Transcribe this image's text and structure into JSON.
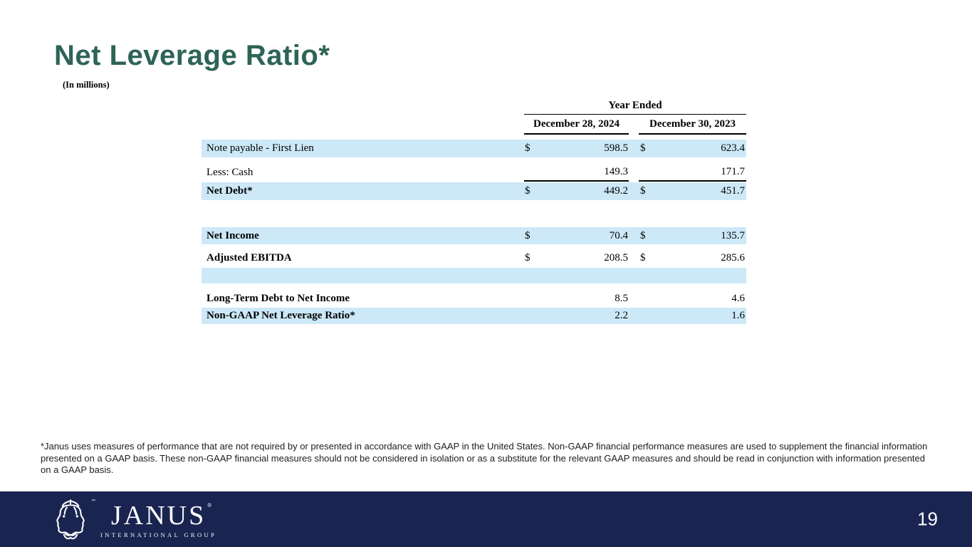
{
  "slide": {
    "title": "Net Leverage Ratio*",
    "subtitle": "(In millions)",
    "footnote": "*Janus uses measures of performance that are not required by or presented in accordance with GAAP in the United States. Non-GAAP financial performance measures are used to supplement the financial information presented on a GAAP basis. These non-GAAP financial measures should not be considered in isolation or as a substitute for the relevant GAAP measures and should be read in conjunction with information presented on a GAAP basis."
  },
  "table": {
    "group_header": "Year Ended",
    "columns": [
      "December 28, 2024",
      "December 30, 2023"
    ],
    "rows": [
      {
        "label": "Note payable - First Lien",
        "bold": false,
        "bg": "blue",
        "dollar1": "$",
        "val1": "598.5",
        "dollar2": "$",
        "val2": "623.4",
        "underline": false
      },
      {
        "label": "Less: Cash",
        "bold": false,
        "bg": "white",
        "dollar1": "",
        "val1": "149.3",
        "dollar2": "",
        "val2": "171.7",
        "underline": true
      },
      {
        "label": "Net Debt*",
        "bold": true,
        "bg": "blue",
        "dollar1": "$",
        "val1": "449.2",
        "dollar2": "$",
        "val2": "451.7",
        "underline": false
      },
      {
        "label": "Net Income",
        "bold": true,
        "bg": "blue",
        "dollar1": "$",
        "val1": "70.4",
        "dollar2": "$",
        "val2": "135.7",
        "underline": false
      },
      {
        "label": "Adjusted EBITDA",
        "bold": true,
        "bg": "white",
        "dollar1": "$",
        "val1": "208.5",
        "dollar2": "$",
        "val2": "285.6",
        "underline": false
      },
      {
        "label": "",
        "bold": false,
        "bg": "blue",
        "dollar1": "",
        "val1": "",
        "dollar2": "",
        "val2": "",
        "underline": false
      },
      {
        "label": "Long-Term Debt to Net Income",
        "bold": true,
        "bg": "white",
        "dollar1": "",
        "val1": "8.5",
        "dollar2": "",
        "val2": "4.6",
        "underline": false
      },
      {
        "label": "Non-GAAP Net Leverage Ratio*",
        "bold": true,
        "bg": "blue",
        "dollar1": "",
        "val1": "2.2",
        "dollar2": "",
        "val2": "1.6",
        "underline": false
      }
    ]
  },
  "footer": {
    "logo_text": "JANUS",
    "logo_reg": "®",
    "logo_tm": "™",
    "logo_subtext": "INTERNATIONAL GROUP",
    "page_number": "19"
  },
  "colors": {
    "title_green": "#2D6456",
    "row_blue": "#CDE9F8",
    "footer_navy": "#1A2450"
  }
}
